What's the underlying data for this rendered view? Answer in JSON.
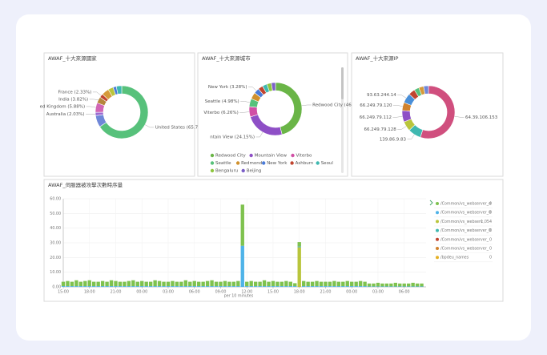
{
  "chart_data": [
    {
      "type": "pie",
      "title": "AWAF_十大來源國家",
      "categories": [
        null,
        null,
        null,
        null,
        null,
        null,
        null,
        null,
        null,
        null
      ],
      "values": [
        65.7,
        7.2,
        2.03,
        5.88,
        3.82,
        2.33,
        4.5,
        3.2,
        2.0,
        3.34
      ],
      "value_labels": [
        "United States (65.7",
        null,
        "Australia (2.03%)",
        "ed Kingdom (5.88%)",
        "India (3.82%)",
        "France (2.33%)",
        null,
        null,
        null,
        null
      ],
      "colors": [
        "#57c17b",
        "#6f87d8",
        "#9c6ad1",
        "#d166b6",
        "#b6863c",
        "#c1442f",
        "#d59a3a",
        "#b9c53c",
        "#4a7bd8",
        "#3fb8b0"
      ],
      "legend": false
    },
    {
      "type": "pie",
      "title": "AWAF_十大來源城市",
      "categories": [
        "Redwood City",
        "Mountain View",
        "Viterbo",
        "Seattle",
        "Redmond",
        "New York",
        "Ashburn",
        "Seoul",
        "Bengaluru",
        "Beijing"
      ],
      "values": [
        46,
        24.15,
        6.26,
        4.98,
        4.1,
        3.28,
        3.0,
        2.9,
        2.8,
        2.53
      ],
      "value_labels": [
        "Redwood City (46",
        "ntain View (24.15%)",
        "Viterbo (6.26%)",
        "Seattle (4.98%)",
        null,
        "New York (3.28%)",
        null,
        null,
        null,
        null
      ],
      "colors": [
        "#6ab547",
        "#8e4fc6",
        "#d14fa5",
        "#57c17b",
        "#d0912e",
        "#4a7bd8",
        "#c1442f",
        "#3fb8b0",
        "#8ec63f",
        "#7b5fc7"
      ],
      "legend": true
    },
    {
      "type": "pie",
      "title": "AWAF_十大來源IP",
      "categories": [
        "64.39.106.153",
        "139.86.9.83",
        "66.249.79.128",
        "66.249.79.112",
        "66.249.79.120",
        "93.63.244.14",
        null,
        null,
        null,
        null
      ],
      "values": [
        55,
        8,
        6,
        7,
        5,
        6,
        4,
        3,
        3,
        3
      ],
      "colors": [
        "#d04f7e",
        "#3fb8b0",
        "#b9c53c",
        "#8e4fc6",
        "#d0822e",
        "#4a8fd8",
        "#c1442f",
        "#57c17b",
        "#d59a3a",
        "#6f87d8"
      ],
      "legend": false
    },
    {
      "type": "bar",
      "title": "AWAF_伺服器被攻擊次數時序量",
      "xlabel": "per 10 minutes",
      "x": [
        0,
        0.5,
        1,
        1.5,
        2,
        2.5,
        3,
        3.5,
        4,
        4.5,
        5,
        5.5,
        6,
        6.5,
        7,
        7.5,
        8,
        8.5,
        9,
        9.5,
        10,
        10.5,
        11,
        11.5,
        12,
        12.5,
        13,
        13.5,
        14,
        14.5,
        15,
        15.5,
        16,
        16.5,
        17,
        17.5,
        18,
        18.5,
        19,
        19.5,
        20,
        20.5,
        21,
        21.5,
        22,
        22.5,
        23,
        23.5,
        24,
        24.5,
        25,
        25.5,
        26,
        26.5,
        27,
        27.5,
        28,
        28.5,
        29,
        29.5,
        30,
        30.5,
        31,
        31.5,
        32,
        32.5,
        33,
        33.5,
        34,
        34.5,
        35,
        35.5,
        36,
        36.5,
        37,
        37.5,
        38,
        38.5,
        39,
        39.5,
        40,
        40.5,
        41
      ],
      "xlim": [
        0,
        41.5
      ],
      "xticks": [
        {
          "value": 0,
          "label": "15:00"
        },
        {
          "value": 3,
          "label": "18:00"
        },
        {
          "value": 6,
          "label": "21:00"
        },
        {
          "value": 9,
          "label": "00:00"
        },
        {
          "value": 12,
          "label": "03:00"
        },
        {
          "value": 15,
          "label": "06:00"
        },
        {
          "value": 18,
          "label": "09:00"
        },
        {
          "value": 21,
          "label": "12:00"
        },
        {
          "value": 24,
          "label": "15:00"
        },
        {
          "value": 27,
          "label": "18:00"
        },
        {
          "value": 30,
          "label": "21:00"
        },
        {
          "value": 33,
          "label": "00:00"
        },
        {
          "value": 36,
          "label": "03:00"
        },
        {
          "value": 39,
          "label": "06:00"
        }
      ],
      "ylim": [
        0,
        60
      ],
      "yticks": [
        {
          "value": 0,
          "label": "0.00"
        },
        {
          "value": 10,
          "label": "10.00"
        },
        {
          "value": 20,
          "label": "20.00"
        },
        {
          "value": 30,
          "label": "30.00"
        },
        {
          "value": 40,
          "label": "40.00"
        },
        {
          "value": 50,
          "label": "50.00"
        },
        {
          "value": 60,
          "label": "60.00"
        }
      ],
      "grid": true,
      "series": [
        {
          "name": "/Common/vs_webserver_d",
          "color": "#7fc24f",
          "total": "0",
          "values": [
            3,
            3.5,
            3,
            4,
            3,
            3.5,
            4,
            3,
            3,
            3.5,
            3,
            4,
            3.5,
            3,
            3,
            3.5,
            4,
            3,
            3.5,
            3,
            3,
            4,
            3.5,
            3,
            3,
            3.5,
            3,
            3,
            4,
            3,
            3.5,
            3,
            3,
            3.5,
            4,
            3,
            3,
            3.5,
            3,
            3,
            3.5,
            28,
            3,
            3.5,
            3,
            3,
            4,
            3,
            3.5,
            3,
            3,
            3.5,
            3,
            2,
            3,
            3.5,
            3,
            3,
            3.5,
            3,
            3,
            3,
            3.5,
            3,
            3,
            3.5,
            3,
            3,
            3.5,
            3,
            2,
            2,
            2.5,
            2,
            2,
            2,
            2.5,
            2,
            2,
            2,
            2.5,
            2,
            2
          ]
        },
        {
          "name": "/Common/vs_webserver_0",
          "color": "#4fb3e8",
          "total": "0",
          "values": [
            0.5,
            0.5,
            0.5,
            0.5,
            0.5,
            0.5,
            0.5,
            0.5,
            0.5,
            0.5,
            0.5,
            0.5,
            0.5,
            0.5,
            0.5,
            0.5,
            0.5,
            0.5,
            0.5,
            0.5,
            0.5,
            0.5,
            0.5,
            0.5,
            0.5,
            0.5,
            0.5,
            0.5,
            0.5,
            0.5,
            0.5,
            0.5,
            0.5,
            0.5,
            0.5,
            0.5,
            0.5,
            0.5,
            0.5,
            0.5,
            0.5,
            28,
            0.5,
            0.5,
            0.5,
            0.5,
            0.5,
            0.5,
            0.5,
            0.5,
            0.5,
            0.5,
            0.5,
            0.5,
            0.5,
            0.5,
            0.5,
            0.5,
            0.5,
            0.5,
            0.5,
            0.5,
            0.5,
            0.5,
            0.5,
            0.5,
            0.5,
            0.5,
            0.5,
            0.5,
            0.3,
            0.3,
            0.3,
            0.3,
            0.3,
            0.3,
            0.3,
            0.3,
            0.3,
            0.3,
            0.3,
            0.3,
            0.3
          ]
        },
        {
          "name": "/Common/vs_webserv",
          "color": "#b9c53c",
          "total": "1,054",
          "values": [
            0,
            0,
            0,
            0,
            0,
            0,
            0,
            0,
            0,
            0,
            0,
            0,
            0,
            0,
            0,
            0,
            0,
            0,
            0,
            0,
            0,
            0,
            0,
            0,
            0,
            0,
            0,
            0,
            0,
            0,
            0,
            0,
            0,
            0,
            0,
            0,
            0,
            0,
            0,
            0,
            0,
            0,
            0,
            0,
            0,
            0,
            0,
            0,
            0,
            0,
            0,
            0,
            0,
            0,
            27,
            0,
            0,
            0,
            0,
            0,
            0,
            0,
            0,
            0,
            0,
            0,
            0,
            0,
            0,
            0,
            0,
            0,
            0,
            0,
            0,
            0,
            0,
            0,
            0,
            0,
            0,
            0,
            0
          ]
        },
        {
          "name": "/Common/vs_webserver_0",
          "color": "#3fb8b0",
          "total": "0"
        },
        {
          "name": "/Common/vs_webserver_",
          "color": "#c1442f",
          "total": "0"
        },
        {
          "name": "/Common/vs_webserver_",
          "color": "#d0822e",
          "total": "0"
        },
        {
          "name": "/bpdeu_names",
          "color": "#e5b024",
          "total": "0"
        }
      ]
    }
  ]
}
